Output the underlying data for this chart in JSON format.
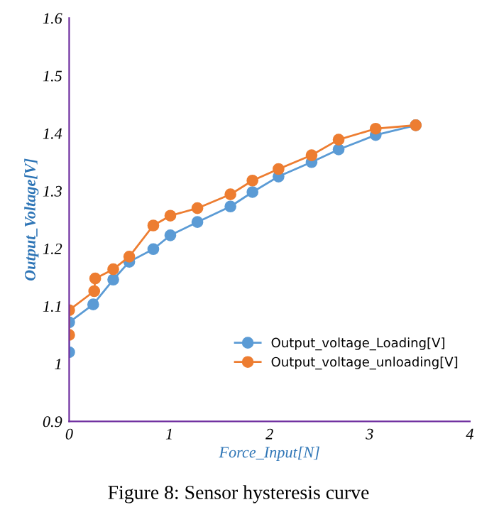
{
  "chart_data": {
    "type": "line",
    "xlabel": "Force_Input[N]",
    "ylabel": "Output_Voltage[V]",
    "annotations": [
      "Figure 8: Sensor hysteresis curve"
    ],
    "xlim": [
      0,
      4
    ],
    "xticks": [
      0,
      1,
      2,
      3,
      4
    ],
    "ylim": [
      0.9,
      1.6
    ],
    "yticks": [
      0.9,
      1,
      1.1,
      1.2,
      1.3,
      1.4,
      1.5,
      1.6
    ],
    "marker": "circle",
    "grid": false,
    "legend": "bottom right",
    "series": [
      {
        "name": "Output_voltage_Loading[V]",
        "color": "#5b9bd5",
        "x": [
          0,
          0,
          0.24,
          0.44,
          0.6,
          0.84,
          1.01,
          1.28,
          1.61,
          1.83,
          2.09,
          2.42,
          2.69,
          3.06,
          3.46
        ],
        "values": [
          1.02,
          1.072,
          1.103,
          1.146,
          1.177,
          1.199,
          1.223,
          1.246,
          1.273,
          1.298,
          1.325,
          1.35,
          1.372,
          1.397,
          1.414
        ]
      },
      {
        "name": "Output_voltage_unloading[V]",
        "color": "#ed7d31",
        "x": [
          0,
          0,
          0.25,
          0.26,
          0.44,
          0.6,
          0.84,
          1.01,
          1.28,
          1.61,
          1.83,
          2.09,
          2.42,
          2.69,
          3.06,
          3.46
        ],
        "values": [
          1.05,
          1.093,
          1.126,
          1.148,
          1.164,
          1.186,
          1.24,
          1.257,
          1.27,
          1.294,
          1.318,
          1.338,
          1.362,
          1.389,
          1.408,
          1.414
        ]
      }
    ]
  }
}
